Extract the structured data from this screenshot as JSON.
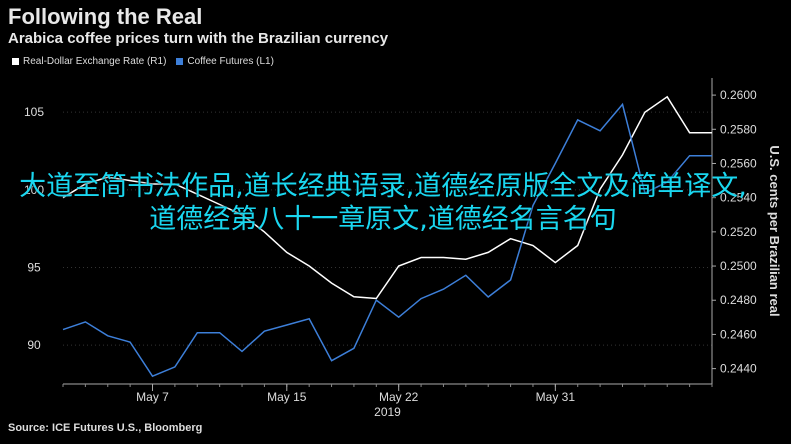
{
  "header": {
    "title": "Following the Real",
    "subtitle": "Arabica coffee prices turn with the Brazilian currency"
  },
  "legend": [
    {
      "label": "Real-Dollar Exchange Rate (R1)",
      "color": "#ffffff"
    },
    {
      "label": "Coffee Futures (L1)",
      "color": "#3d7fd9"
    }
  ],
  "source": "Source: ICE Futures U.S., Bloomberg",
  "overlay_text": "大道至简书法作品,道长经典语录,道德经原版全文及简单译文,道德经第八十一章原文,道德经名言名句",
  "chart_data": {
    "type": "line",
    "title": "Following the Real",
    "subtitle": "Arabica coffee prices turn with the Brazilian currency",
    "x_ticks": [
      "May 7",
      "May 15",
      "May 22",
      "May 31"
    ],
    "x_year": "2019",
    "left_axis": {
      "ticks": [
        90,
        95,
        100,
        105
      ],
      "ylim": [
        87.5,
        107.2
      ]
    },
    "right_axis": {
      "label": "U.S. cents per Brazilian real",
      "ticks": [
        "0.2440",
        "0.2460",
        "0.2480",
        "0.2500",
        "0.2520",
        "0.2540",
        "0.2560",
        "0.2580",
        "0.2600"
      ],
      "ylim": [
        0.2431,
        0.261
      ]
    },
    "series": [
      {
        "name": "Real-Dollar Exchange Rate (R1)",
        "axis": "right",
        "color": "#ffffff",
        "values": [
          0.254,
          0.2548,
          0.2552,
          0.255,
          0.2548,
          0.2548,
          0.2542,
          0.2536,
          0.253,
          0.252,
          0.2508,
          0.25,
          0.249,
          0.2482,
          0.2481,
          0.25,
          0.2505,
          0.2505,
          0.2504,
          0.2508,
          0.2516,
          0.2512,
          0.2502,
          0.2512,
          0.2545,
          0.2565,
          0.259,
          0.2599,
          0.2578,
          0.2578
        ]
      },
      {
        "name": "Coffee Futures (L1)",
        "axis": "left",
        "color": "#3d7fd9",
        "values": [
          91.0,
          91.5,
          90.6,
          90.2,
          88.0,
          88.6,
          90.8,
          90.8,
          89.6,
          90.9,
          91.3,
          91.7,
          89.0,
          89.8,
          92.9,
          91.8,
          93.0,
          93.6,
          94.5,
          93.1,
          94.2,
          99.0,
          101.7,
          104.5,
          103.8,
          105.5,
          99.8,
          100.5,
          102.2,
          102.2
        ]
      }
    ]
  }
}
